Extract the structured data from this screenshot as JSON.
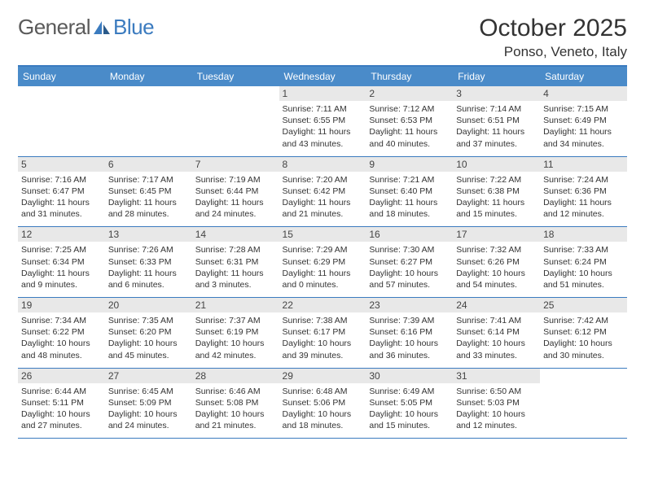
{
  "logo": {
    "text1": "General",
    "text2": "Blue"
  },
  "title": "October 2025",
  "location": "Ponso, Veneto, Italy",
  "colors": {
    "header_bg": "#4a8bc9",
    "border": "#3b7bbf",
    "daynum_bg": "#e8e8e8",
    "text": "#333333",
    "logo_gray": "#5a5a5a",
    "logo_blue": "#3b7bbf"
  },
  "days_of_week": [
    "Sunday",
    "Monday",
    "Tuesday",
    "Wednesday",
    "Thursday",
    "Friday",
    "Saturday"
  ],
  "weeks": [
    [
      null,
      null,
      null,
      {
        "n": "1",
        "sr": "7:11 AM",
        "ss": "6:55 PM",
        "dl": "11 hours and 43 minutes."
      },
      {
        "n": "2",
        "sr": "7:12 AM",
        "ss": "6:53 PM",
        "dl": "11 hours and 40 minutes."
      },
      {
        "n": "3",
        "sr": "7:14 AM",
        "ss": "6:51 PM",
        "dl": "11 hours and 37 minutes."
      },
      {
        "n": "4",
        "sr": "7:15 AM",
        "ss": "6:49 PM",
        "dl": "11 hours and 34 minutes."
      }
    ],
    [
      {
        "n": "5",
        "sr": "7:16 AM",
        "ss": "6:47 PM",
        "dl": "11 hours and 31 minutes."
      },
      {
        "n": "6",
        "sr": "7:17 AM",
        "ss": "6:45 PM",
        "dl": "11 hours and 28 minutes."
      },
      {
        "n": "7",
        "sr": "7:19 AM",
        "ss": "6:44 PM",
        "dl": "11 hours and 24 minutes."
      },
      {
        "n": "8",
        "sr": "7:20 AM",
        "ss": "6:42 PM",
        "dl": "11 hours and 21 minutes."
      },
      {
        "n": "9",
        "sr": "7:21 AM",
        "ss": "6:40 PM",
        "dl": "11 hours and 18 minutes."
      },
      {
        "n": "10",
        "sr": "7:22 AM",
        "ss": "6:38 PM",
        "dl": "11 hours and 15 minutes."
      },
      {
        "n": "11",
        "sr": "7:24 AM",
        "ss": "6:36 PM",
        "dl": "11 hours and 12 minutes."
      }
    ],
    [
      {
        "n": "12",
        "sr": "7:25 AM",
        "ss": "6:34 PM",
        "dl": "11 hours and 9 minutes."
      },
      {
        "n": "13",
        "sr": "7:26 AM",
        "ss": "6:33 PM",
        "dl": "11 hours and 6 minutes."
      },
      {
        "n": "14",
        "sr": "7:28 AM",
        "ss": "6:31 PM",
        "dl": "11 hours and 3 minutes."
      },
      {
        "n": "15",
        "sr": "7:29 AM",
        "ss": "6:29 PM",
        "dl": "11 hours and 0 minutes."
      },
      {
        "n": "16",
        "sr": "7:30 AM",
        "ss": "6:27 PM",
        "dl": "10 hours and 57 minutes."
      },
      {
        "n": "17",
        "sr": "7:32 AM",
        "ss": "6:26 PM",
        "dl": "10 hours and 54 minutes."
      },
      {
        "n": "18",
        "sr": "7:33 AM",
        "ss": "6:24 PM",
        "dl": "10 hours and 51 minutes."
      }
    ],
    [
      {
        "n": "19",
        "sr": "7:34 AM",
        "ss": "6:22 PM",
        "dl": "10 hours and 48 minutes."
      },
      {
        "n": "20",
        "sr": "7:35 AM",
        "ss": "6:20 PM",
        "dl": "10 hours and 45 minutes."
      },
      {
        "n": "21",
        "sr": "7:37 AM",
        "ss": "6:19 PM",
        "dl": "10 hours and 42 minutes."
      },
      {
        "n": "22",
        "sr": "7:38 AM",
        "ss": "6:17 PM",
        "dl": "10 hours and 39 minutes."
      },
      {
        "n": "23",
        "sr": "7:39 AM",
        "ss": "6:16 PM",
        "dl": "10 hours and 36 minutes."
      },
      {
        "n": "24",
        "sr": "7:41 AM",
        "ss": "6:14 PM",
        "dl": "10 hours and 33 minutes."
      },
      {
        "n": "25",
        "sr": "7:42 AM",
        "ss": "6:12 PM",
        "dl": "10 hours and 30 minutes."
      }
    ],
    [
      {
        "n": "26",
        "sr": "6:44 AM",
        "ss": "5:11 PM",
        "dl": "10 hours and 27 minutes."
      },
      {
        "n": "27",
        "sr": "6:45 AM",
        "ss": "5:09 PM",
        "dl": "10 hours and 24 minutes."
      },
      {
        "n": "28",
        "sr": "6:46 AM",
        "ss": "5:08 PM",
        "dl": "10 hours and 21 minutes."
      },
      {
        "n": "29",
        "sr": "6:48 AM",
        "ss": "5:06 PM",
        "dl": "10 hours and 18 minutes."
      },
      {
        "n": "30",
        "sr": "6:49 AM",
        "ss": "5:05 PM",
        "dl": "10 hours and 15 minutes."
      },
      {
        "n": "31",
        "sr": "6:50 AM",
        "ss": "5:03 PM",
        "dl": "10 hours and 12 minutes."
      },
      null
    ]
  ],
  "labels": {
    "sunrise": "Sunrise:",
    "sunset": "Sunset:",
    "daylight": "Daylight:"
  }
}
